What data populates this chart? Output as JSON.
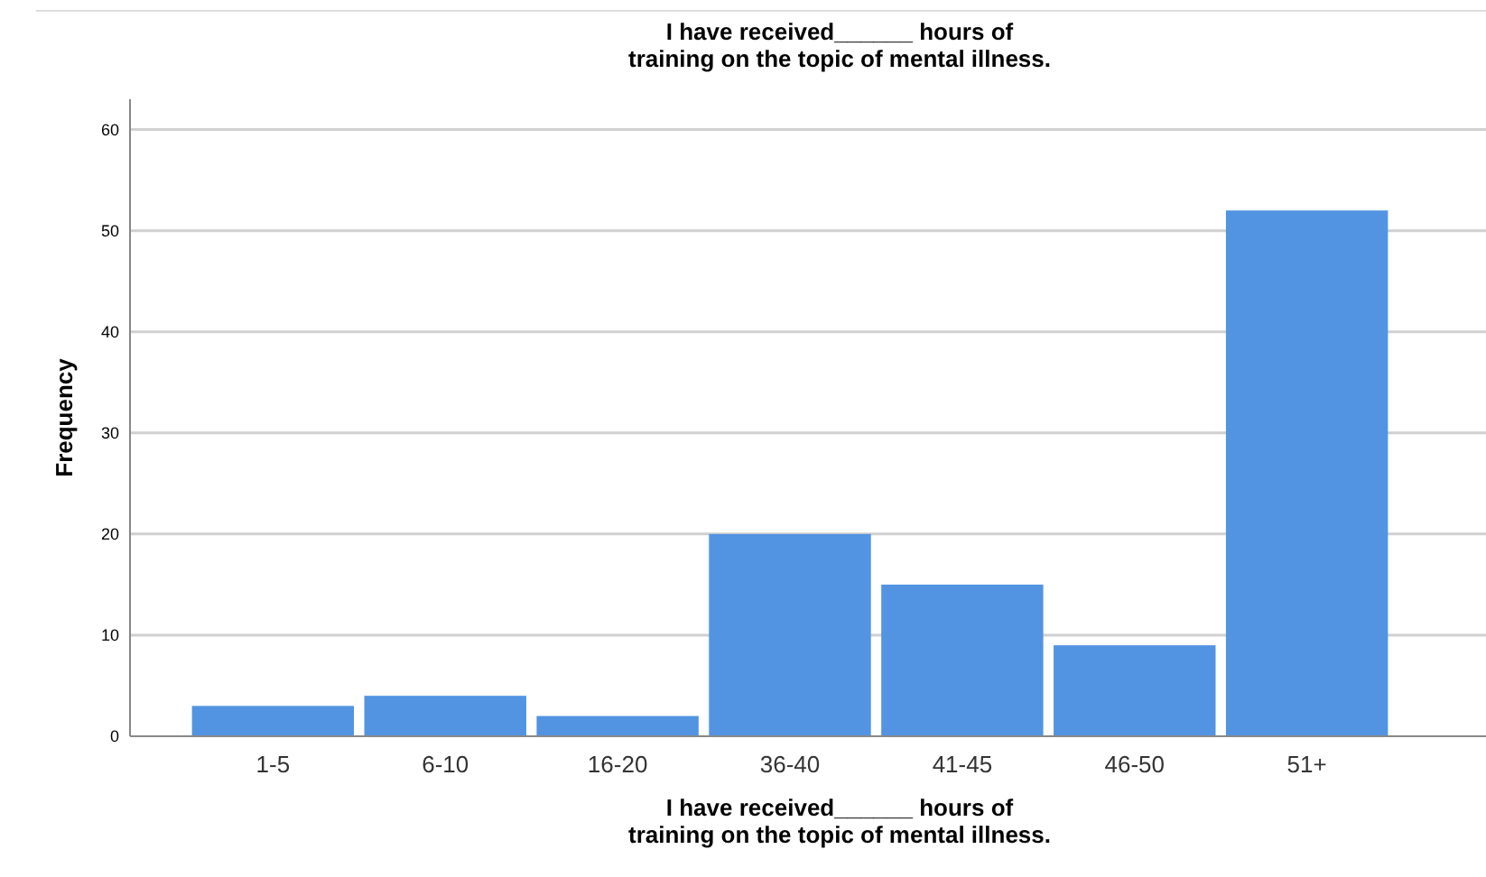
{
  "chart_data": {
    "type": "bar",
    "title": "I have received______ hours of\ntraining on the topic of mental illness.",
    "xlabel": "I have received______ hours of\ntraining on the topic of mental illness.",
    "ylabel": "Frequency",
    "categories": [
      "1-5",
      "6-10",
      "16-20",
      "36-40",
      "41-45",
      "46-50",
      "51+"
    ],
    "values": [
      3,
      4,
      2,
      20,
      15,
      9,
      52
    ],
    "color": "#5294e2",
    "ylim": [
      0,
      63
    ],
    "yticks": [
      0,
      10,
      20,
      30,
      40,
      50,
      60
    ],
    "grid": "y"
  }
}
